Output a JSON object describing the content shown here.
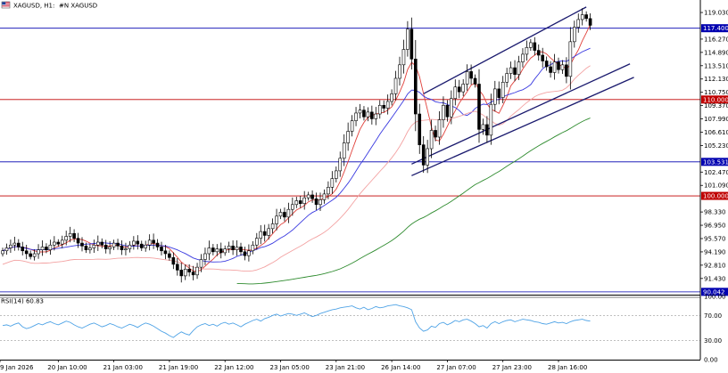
{
  "header": {
    "symbol": "XAGUSD, H1:",
    "description": "#N XAGUSD",
    "icon": "flag-icon"
  },
  "colors": {
    "background": "#ffffff",
    "candle": "#000000",
    "grid_axis": "#000000",
    "ma_fast": "#e0403a",
    "ma_slow": "#3a3ae0",
    "ma_light": "#f3a2a2",
    "ma_long": "#2e8b2e",
    "channel": "#1a1a6e",
    "hline_blue": "#0000b0",
    "hline_red": "#c00000",
    "rsi_line": "#4fa3e6"
  },
  "chart_data": [
    {
      "type": "candlestick",
      "title": "XAGUSD, H1:  #N XAGUSD",
      "x_tick_labels": [
        "9 Jan 2026",
        "20 Jan 10:00",
        "21 Jan 03:00",
        "21 Jan 19:00",
        "22 Jan 12:00",
        "23 Jan 05:00",
        "23 Jan 21:00",
        "26 Jan 14:00",
        "27 Jan 07:00",
        "27 Jan 23:00",
        "28 Jan 16:00"
      ],
      "y_tick_labels": [
        "119.030",
        "116.270",
        "114.890",
        "113.510",
        "112.130",
        "110.750",
        "109.370",
        "107.990",
        "106.610",
        "105.230",
        "102.470",
        "101.090",
        "98.330",
        "96.950",
        "95.570",
        "94.190",
        "92.810",
        "91.430"
      ],
      "ylim": [
        89.75,
        120.05
      ],
      "horizontal_lines": [
        {
          "value": 117.4,
          "label": "117.400",
          "color": "blue"
        },
        {
          "value": 110.0,
          "label": "110.000",
          "color": "red"
        },
        {
          "value": 103.531,
          "label": "103.531",
          "color": "blue"
        },
        {
          "value": 100.0,
          "label": "100.000",
          "color": "red"
        },
        {
          "value": 90.042,
          "label": "90.042",
          "color": "blue"
        }
      ],
      "closes": [
        94.3,
        94.6,
        94.9,
        95.1,
        94.7,
        94.3,
        94.0,
        93.7,
        94.0,
        94.4,
        94.7,
        94.4,
        94.9,
        95.2,
        95.0,
        95.4,
        95.8,
        96.1,
        95.6,
        95.1,
        94.8,
        94.4,
        94.6,
        94.9,
        95.2,
        94.9,
        94.5,
        94.7,
        95.1,
        94.8,
        94.4,
        94.5,
        94.9,
        95.3,
        95.0,
        94.6,
        94.9,
        95.4,
        95.1,
        94.7,
        94.3,
        94.0,
        93.6,
        92.9,
        92.3,
        91.7,
        92.4,
        92.1,
        91.8,
        92.6,
        93.4,
        94.0,
        94.6,
        94.2,
        94.5,
        94.1,
        94.5,
        94.8,
        94.4,
        94.7,
        94.2,
        93.8,
        94.3,
        94.9,
        95.6,
        96.3,
        95.9,
        96.6,
        97.1,
        97.9,
        98.3,
        97.8,
        98.6,
        99.1,
        99.5,
        99.2,
        99.8,
        100.1,
        99.7,
        99.1,
        99.6,
        100.2,
        100.9,
        101.8,
        102.6,
        103.9,
        105.5,
        106.7,
        107.8,
        108.6,
        108.9,
        108.2,
        108.7,
        108.0,
        108.5,
        109.4,
        109.1,
        109.8,
        110.6,
        112.2,
        113.6,
        115.2,
        117.3,
        114.2,
        108.5,
        105.3,
        103.2,
        104.9,
        106.8,
        106.1,
        107.9,
        109.4,
        108.2,
        110.1,
        111.3,
        110.8,
        111.6,
        112.9,
        112.2,
        111.6,
        106.9,
        107.4,
        106.3,
        109.5,
        111.1,
        110.2,
        111.8,
        112.7,
        113.3,
        112.6,
        113.9,
        114.7,
        115.4,
        115.9,
        115.1,
        114.6,
        114.0,
        113.4,
        112.8,
        113.9,
        113.1,
        113.6,
        112.4,
        116.0,
        117.5,
        118.3,
        118.8,
        118.4,
        117.7
      ],
      "rsi": {
        "label": "RSI(14) 60.83",
        "ylim": [
          0,
          100
        ],
        "y_tick_labels": [
          "100.00",
          "70.00",
          "30.00",
          "0.00"
        ],
        "levels": [
          70,
          30
        ],
        "values": [
          54,
          55,
          53,
          56,
          58,
          52,
          49,
          51,
          54,
          57,
          55,
          58,
          60,
          57,
          55,
          58,
          61,
          59,
          55,
          52,
          50,
          53,
          56,
          58,
          55,
          52,
          54,
          57,
          55,
          52,
          50,
          53,
          56,
          54,
          51,
          55,
          58,
          56,
          53,
          49,
          45,
          42,
          38,
          35,
          40,
          44,
          41,
          39,
          46,
          52,
          55,
          57,
          54,
          56,
          53,
          57,
          59,
          56,
          58,
          55,
          52,
          56,
          59,
          62,
          64,
          61,
          65,
          67,
          70,
          72,
          69,
          71,
          73,
          72,
          70,
          72,
          74,
          71,
          68,
          70,
          73,
          75,
          77,
          79,
          80,
          82,
          83,
          84,
          85,
          82,
          80,
          83,
          79,
          81,
          84,
          82,
          83,
          85,
          86,
          87,
          85,
          84,
          82,
          79,
          60,
          50,
          45,
          47,
          53,
          51,
          57,
          59,
          55,
          58,
          62,
          60,
          63,
          64,
          61,
          57,
          52,
          54,
          50,
          57,
          60,
          57,
          60,
          62,
          63,
          60,
          62,
          64,
          63,
          62,
          60,
          59,
          57,
          56,
          58,
          60,
          58,
          59,
          57,
          60,
          62,
          63,
          64,
          62,
          61
        ]
      }
    }
  ]
}
